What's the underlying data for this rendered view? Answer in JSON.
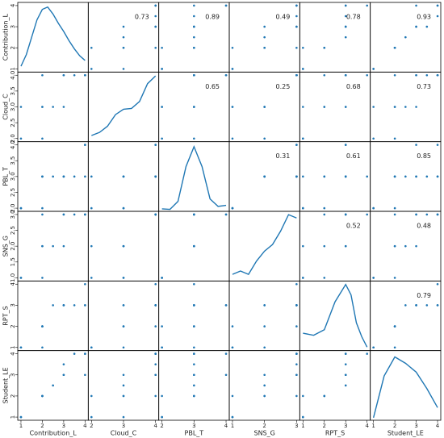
{
  "chart_data": {
    "type": "scatter_matrix",
    "point_color": "#1f77b4",
    "line_color": "#1f77b4",
    "variables": [
      {
        "name": "Contribution_L",
        "lim": [
          0.85,
          4.15
        ],
        "ticks": [
          1,
          2,
          3,
          4
        ],
        "yticks": [
          1,
          2,
          3,
          4
        ],
        "kde": {
          "x": [
            1,
            1.25,
            1.5,
            1.75,
            2,
            2.25,
            2.5,
            2.75,
            3,
            3.25,
            3.5,
            3.75,
            4
          ],
          "y": [
            0.05,
            0.15,
            0.3,
            0.45,
            0.54,
            0.56,
            0.5,
            0.42,
            0.35,
            0.27,
            0.2,
            0.14,
            0.1
          ],
          "ylim": [
            0,
            0.6
          ]
        }
      },
      {
        "name": "Cloud_C",
        "lim": [
          1.9,
          4.1
        ],
        "ticks": [
          2,
          3,
          4
        ],
        "yticks": [
          {
            "value": 2,
            "label": "2.0"
          },
          {
            "value": 2.5,
            "label": "2.5"
          },
          {
            "value": 3,
            "label": "3.0"
          },
          {
            "value": 3.5,
            "label": "3.5"
          },
          {
            "value": 4,
            "label": "4.0"
          }
        ],
        "kde": {
          "x": [
            2,
            2.25,
            2.5,
            2.75,
            3,
            3.25,
            3.5,
            3.75,
            4
          ],
          "y": [
            0.08,
            0.12,
            0.2,
            0.35,
            0.42,
            0.43,
            0.52,
            0.75,
            0.85
          ],
          "ylim": [
            0,
            0.9
          ]
        }
      },
      {
        "name": "PBL_T",
        "lim": [
          1.9,
          4.1
        ],
        "ticks": [
          2,
          3,
          4
        ],
        "yticks": [
          {
            "value": 2,
            "label": "2.0"
          },
          {
            "value": 2.5,
            "label": "2.5"
          },
          {
            "value": 3,
            "label": "3.0"
          },
          {
            "value": 3.5,
            "label": "3.5"
          },
          {
            "value": 4,
            "label": "4.0"
          }
        ],
        "kde": {
          "x": [
            2,
            2.25,
            2.5,
            2.75,
            3,
            3.25,
            3.5,
            3.75,
            4
          ],
          "y": [
            0.05,
            0.04,
            0.2,
            0.9,
            1.3,
            0.9,
            0.25,
            0.1,
            0.12
          ],
          "ylim": [
            0,
            1.4
          ]
        }
      },
      {
        "name": "SNS_G",
        "lim": [
          0.9,
          3.1
        ],
        "ticks": [
          1,
          2,
          3
        ],
        "yticks": [
          {
            "value": 1,
            "label": "1.0"
          },
          {
            "value": 1.5,
            "label": "1.5"
          },
          {
            "value": 2,
            "label": "2.0"
          },
          {
            "value": 2.5,
            "label": "2.5"
          },
          {
            "value": 3,
            "label": "3.0"
          }
        ],
        "kde": {
          "x": [
            1,
            1.25,
            1.5,
            1.75,
            2,
            2.25,
            2.5,
            2.75,
            3
          ],
          "y": [
            0.1,
            0.15,
            0.1,
            0.3,
            0.45,
            0.55,
            0.75,
            1.0,
            0.95
          ],
          "ylim": [
            0,
            1.05
          ]
        }
      },
      {
        "name": "RPT_S",
        "lim": [
          0.85,
          4.15
        ],
        "ticks": [
          1,
          2,
          3,
          4
        ],
        "yticks": [
          1,
          2,
          3,
          4
        ],
        "kde": {
          "x": [
            1,
            1.5,
            2,
            2.5,
            3,
            3.25,
            3.5,
            3.75,
            4
          ],
          "y": [
            0.25,
            0.22,
            0.3,
            0.7,
            0.95,
            0.8,
            0.4,
            0.2,
            0.05
          ],
          "ylim": [
            0,
            1
          ]
        }
      },
      {
        "name": "Student_LE",
        "lim": [
          0.85,
          4.15
        ],
        "ticks": [
          1,
          2,
          3,
          4
        ],
        "yticks": [
          1,
          2,
          3,
          4
        ],
        "kde": {
          "x": [
            1,
            1.5,
            2,
            2.5,
            3,
            3.5,
            4
          ],
          "y": [
            0.02,
            0.35,
            0.5,
            0.45,
            0.38,
            0.25,
            0.1
          ],
          "ylim": [
            0,
            0.55
          ]
        }
      }
    ],
    "correlations": [
      [
        0.73,
        0.89,
        0.49,
        0.78,
        0.93
      ],
      [
        0.65,
        0.25,
        0.68,
        0.73
      ],
      [
        0.31,
        0.61,
        0.85
      ],
      [
        0.52,
        0.48
      ],
      [
        0.79
      ]
    ],
    "observations": [
      [
        1,
        2,
        2,
        1,
        1,
        1
      ],
      [
        2,
        3,
        3,
        2,
        2,
        2
      ],
      [
        2,
        2,
        3,
        2,
        1,
        2
      ],
      [
        2.5,
        3,
        3,
        2,
        3,
        2.5
      ],
      [
        3,
        3,
        3,
        2,
        3,
        3
      ],
      [
        3,
        4,
        3,
        3,
        3,
        3
      ],
      [
        4,
        4,
        4,
        3,
        3,
        4
      ],
      [
        2,
        4,
        3,
        3,
        2,
        2
      ],
      [
        4,
        4,
        3,
        3,
        4,
        4
      ],
      [
        3,
        4,
        3,
        3,
        3,
        3.5
      ],
      [
        1,
        3,
        2,
        1,
        1,
        1
      ],
      [
        3.5,
        4,
        3,
        3,
        3,
        4
      ],
      [
        2,
        3,
        2,
        1,
        2,
        2
      ],
      [
        4,
        4,
        4,
        3,
        3,
        3
      ]
    ]
  }
}
